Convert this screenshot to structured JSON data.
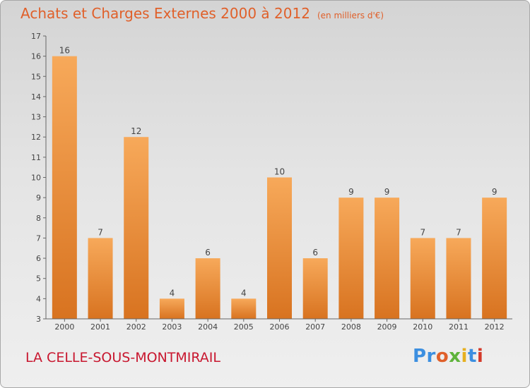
{
  "title": "Achats et Charges Externes 2000 à 2012",
  "unit_note": "(en milliers d'€)",
  "commune": "LA CELLE-SOUS-MONTMIRAIL",
  "logo": {
    "p1": "Pr",
    "p2": "o",
    "p3": "x",
    "p4": "i",
    "p5": "t",
    "p6": "i"
  },
  "colors": {
    "bar_top": "#f7a95a",
    "bar_bottom": "#d87320",
    "title": "#e0602a",
    "commune": "#c8172f"
  },
  "chart_data": {
    "type": "bar",
    "title": "Achats et Charges Externes 2000 à 2012",
    "categories": [
      "2000",
      "2001",
      "2002",
      "2003",
      "2004",
      "2005",
      "2006",
      "2007",
      "2008",
      "2009",
      "2010",
      "2011",
      "2012"
    ],
    "values": [
      16,
      7,
      12,
      4,
      6,
      4,
      10,
      6,
      9,
      9,
      7,
      7,
      9
    ],
    "yticks": [
      3,
      4,
      5,
      6,
      7,
      8,
      9,
      10,
      11,
      12,
      13,
      14,
      15,
      16,
      17
    ],
    "ylim": [
      3,
      17
    ],
    "grid": false,
    "legend": "none"
  }
}
